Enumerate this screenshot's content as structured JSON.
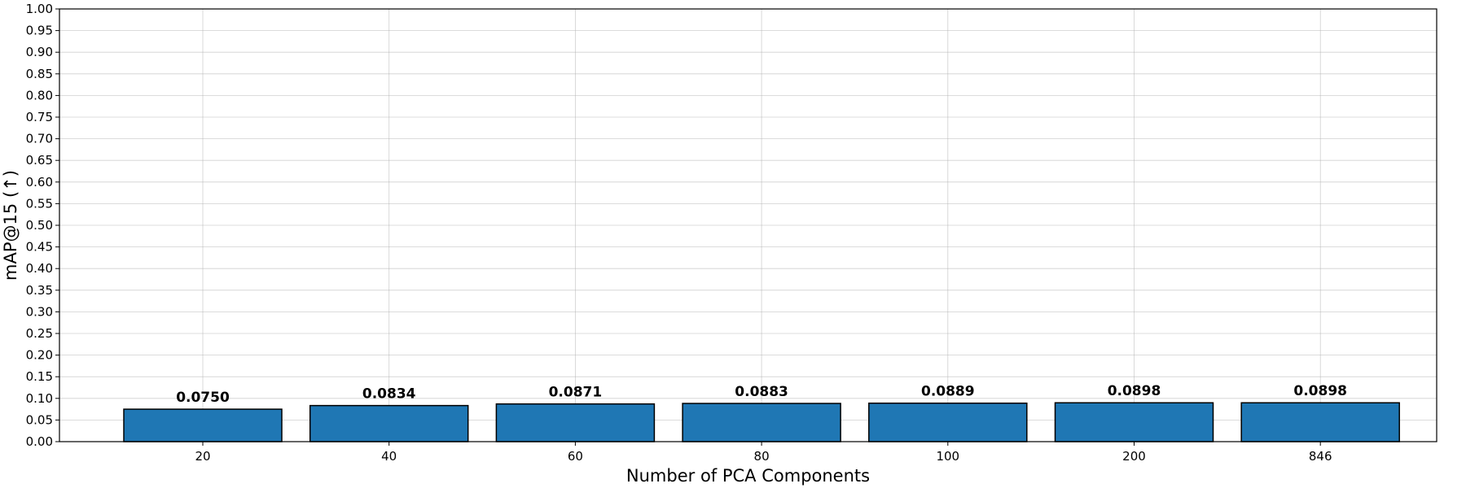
{
  "chart_data": {
    "type": "bar",
    "categories": [
      "20",
      "40",
      "60",
      "80",
      "100",
      "200",
      "846"
    ],
    "values": [
      0.075,
      0.0834,
      0.0871,
      0.0883,
      0.0889,
      0.0898,
      0.0898
    ],
    "value_labels": [
      "0.0750",
      "0.0834",
      "0.0871",
      "0.0883",
      "0.0889",
      "0.0898",
      "0.0898"
    ],
    "title": "",
    "xlabel": "Number of PCA Components",
    "ylabel": "mAP@15 (↑)",
    "ylim": [
      0,
      1.0
    ],
    "yticks": [
      "0.00",
      "0.05",
      "0.10",
      "0.15",
      "0.20",
      "0.25",
      "0.30",
      "0.35",
      "0.40",
      "0.45",
      "0.50",
      "0.55",
      "0.60",
      "0.65",
      "0.70",
      "0.75",
      "0.80",
      "0.85",
      "0.90",
      "0.95",
      "1.00"
    ],
    "grid": true,
    "bar_color": "#1f77b4",
    "bar_edge_color": "#000000"
  }
}
